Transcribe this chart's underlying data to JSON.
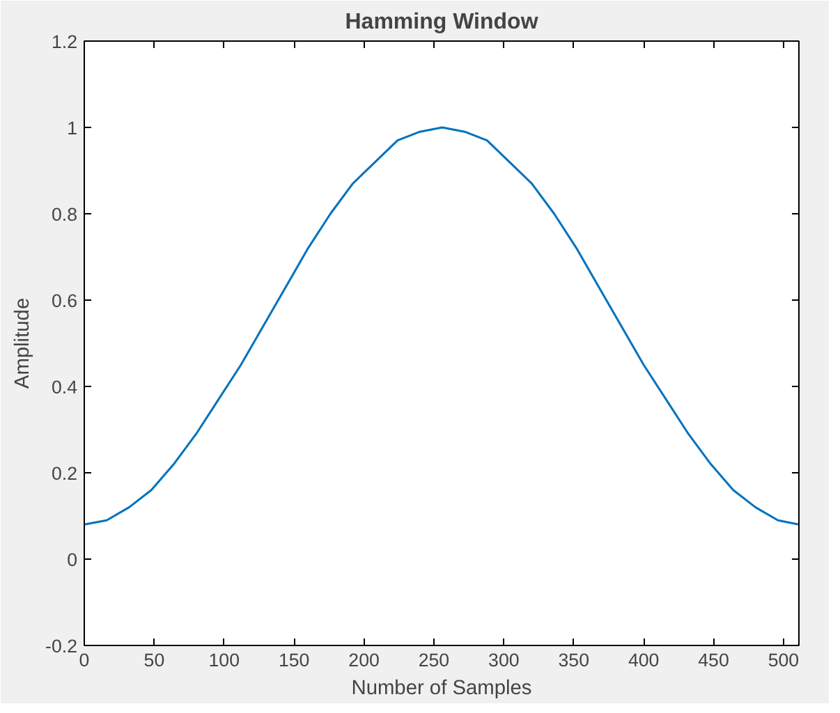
{
  "chart_data": {
    "type": "line",
    "title": "Hamming Window",
    "xlabel": "Number of Samples",
    "ylabel": "Amplitude",
    "x": [
      0,
      16,
      32,
      48,
      64,
      80,
      96,
      112,
      128,
      144,
      160,
      176,
      192,
      208,
      224,
      240,
      256,
      272,
      288,
      304,
      320,
      336,
      352,
      368,
      384,
      400,
      416,
      432,
      448,
      464,
      480,
      496,
      511
    ],
    "series": [
      {
        "color": "#0072bd",
        "values": [
          0.08,
          0.09,
          0.12,
          0.16,
          0.22,
          0.29,
          0.37,
          0.45,
          0.54,
          0.63,
          0.72,
          0.8,
          0.87,
          0.92,
          0.97,
          0.99,
          1.0,
          0.99,
          0.97,
          0.92,
          0.87,
          0.8,
          0.72,
          0.63,
          0.54,
          0.45,
          0.37,
          0.29,
          0.22,
          0.16,
          0.12,
          0.09,
          0.08
        ]
      }
    ],
    "xlim": [
      0,
      511
    ],
    "ylim": [
      -0.2,
      1.2
    ],
    "xticks": [
      0,
      50,
      100,
      150,
      200,
      250,
      300,
      350,
      400,
      450,
      500
    ],
    "yticks": [
      -0.2,
      0,
      0.2,
      0.4,
      0.6,
      0.8,
      1,
      1.2
    ],
    "line_style": "solid"
  }
}
